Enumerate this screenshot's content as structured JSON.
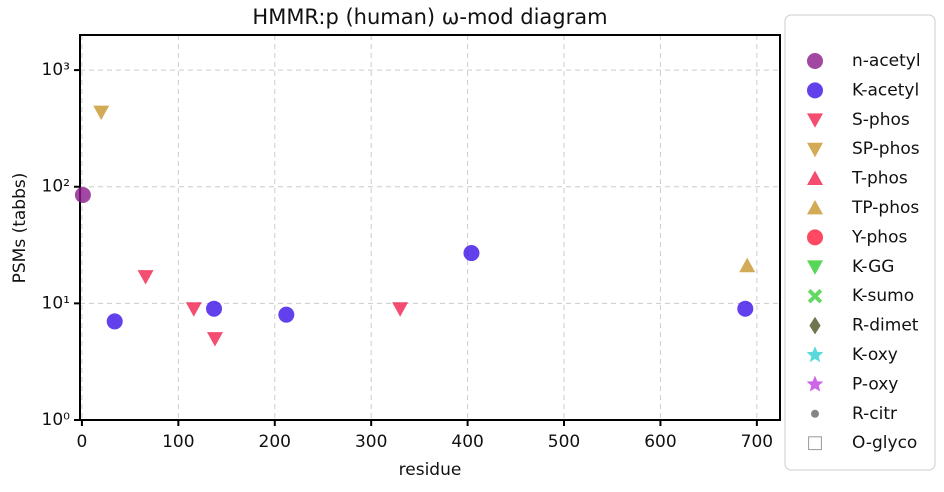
{
  "chart_data": {
    "type": "scatter",
    "title": "HMMR:p (human) ω-mod diagram",
    "x_label": "residue",
    "y_label": "PSMs (tabbs)",
    "xlim": [
      -2,
      724
    ],
    "xticks": [
      0,
      100,
      200,
      300,
      400,
      500,
      600,
      700
    ],
    "ylim": [
      1,
      2000
    ],
    "log_y": true,
    "yticks": [
      {
        "value": 1,
        "label": "10⁰"
      },
      {
        "value": 10,
        "label": "10¹"
      },
      {
        "value": 100,
        "label": "10²"
      },
      {
        "value": 1000,
        "label": "10³"
      }
    ],
    "grid": true,
    "legend": "outside-right",
    "series": [
      {
        "name": "n-acetyl",
        "color": "#8b1a8b",
        "marker": "circle",
        "x": [
          1
        ],
        "values": [
          85
        ]
      },
      {
        "name": "K-acetyl",
        "color": "#3b12e8",
        "marker": "circle",
        "x": [
          34,
          137,
          212,
          404,
          688
        ],
        "values": [
          7,
          9,
          8,
          27,
          9
        ]
      },
      {
        "name": "S-phos",
        "color": "#f0224e",
        "marker": "tri-down",
        "x": [
          66,
          116,
          138,
          330
        ],
        "values": [
          17,
          9,
          5,
          9
        ]
      },
      {
        "name": "SP-phos",
        "color": "#c8952a",
        "marker": "tri-down",
        "x": [
          20
        ],
        "values": [
          437
        ]
      },
      {
        "name": "T-phos",
        "color": "#f0224e",
        "marker": "tri-up",
        "x": [],
        "values": []
      },
      {
        "name": "TP-phos",
        "color": "#c8952a",
        "marker": "tri-up",
        "x": [
          690
        ],
        "values": [
          21
        ]
      },
      {
        "name": "Y-phos",
        "color": "#ff1a3a",
        "marker": "circle",
        "x": [],
        "values": []
      },
      {
        "name": "K-GG",
        "color": "#2ecc2e",
        "marker": "tri-down",
        "x": [],
        "values": []
      },
      {
        "name": "K-sumo",
        "color": "#3ccf3c",
        "marker": "x",
        "x": [],
        "values": []
      },
      {
        "name": "R-dimet",
        "color": "#4b5320",
        "marker": "diamond",
        "x": [],
        "values": []
      },
      {
        "name": "K-oxy",
        "color": "#30d0d0",
        "marker": "star",
        "x": [],
        "values": []
      },
      {
        "name": "P-oxy",
        "color": "#c040e0",
        "marker": "star",
        "x": [],
        "values": []
      },
      {
        "name": "R-citr",
        "color": "#666666",
        "marker": "dot",
        "x": [],
        "values": []
      },
      {
        "name": "O-glyco",
        "color": "#999999",
        "marker": "square",
        "x": [],
        "values": []
      }
    ]
  }
}
